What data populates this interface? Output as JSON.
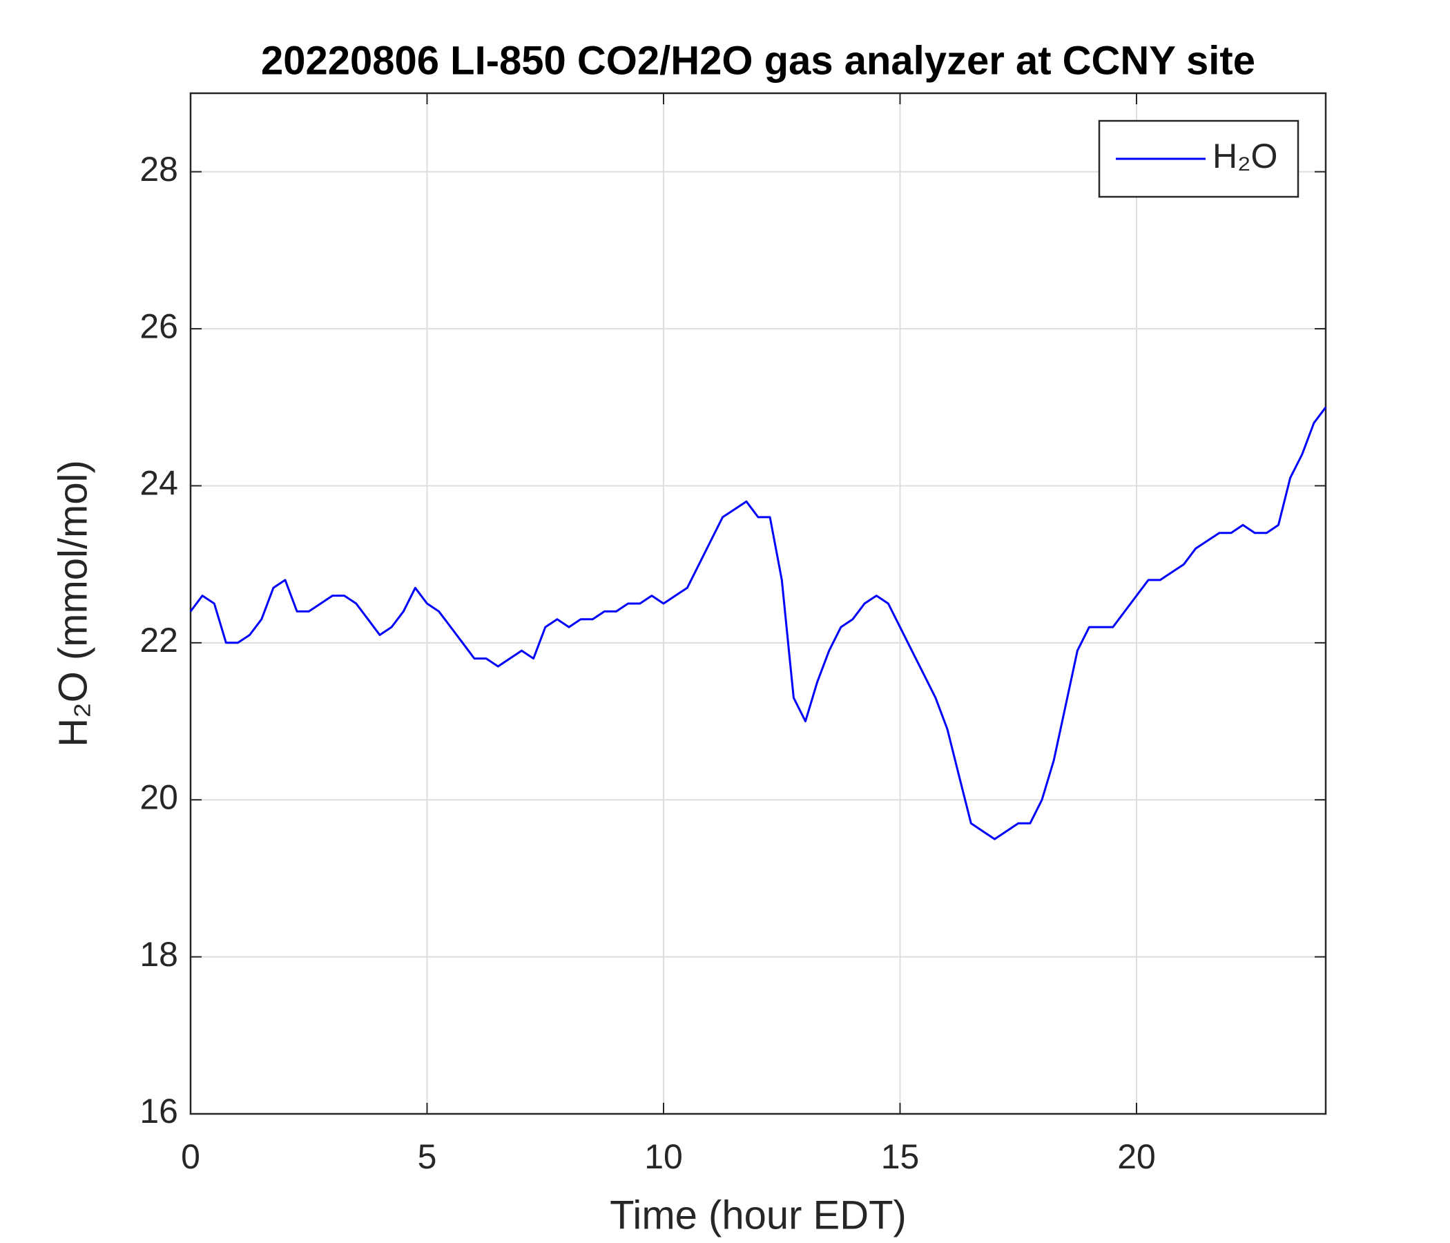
{
  "chart_data": {
    "type": "line",
    "title": "20220806 LI-850 CO2/H2O gas analyzer at CCNY site",
    "xlabel": "Time (hour EDT)",
    "ylabel": "H₂O (mmol/mol)",
    "x": [
      0,
      0.25,
      0.5,
      0.75,
      1,
      1.25,
      1.5,
      1.75,
      2,
      2.25,
      2.5,
      2.75,
      3,
      3.25,
      3.5,
      3.75,
      4,
      4.25,
      4.5,
      4.75,
      5,
      5.25,
      5.5,
      5.75,
      6,
      6.25,
      6.5,
      6.75,
      7,
      7.25,
      7.5,
      7.75,
      8,
      8.25,
      8.5,
      8.75,
      9,
      9.25,
      9.5,
      9.75,
      10,
      10.25,
      10.5,
      10.75,
      11,
      11.25,
      11.5,
      11.75,
      12,
      12.25,
      12.5,
      12.75,
      13,
      13.25,
      13.5,
      13.75,
      14,
      14.25,
      14.5,
      14.75,
      15,
      15.25,
      15.5,
      15.75,
      16,
      16.25,
      16.5,
      16.75,
      17,
      17.25,
      17.5,
      17.75,
      18,
      18.25,
      18.5,
      18.75,
      19,
      19.25,
      19.5,
      19.75,
      20,
      20.25,
      20.5,
      20.75,
      21,
      21.25,
      21.5,
      21.75,
      22,
      22.25,
      22.5,
      22.75,
      23,
      23.25,
      23.5,
      23.75,
      24
    ],
    "series": [
      {
        "name": "H₂O",
        "color": "#0000ff",
        "values": [
          22.4,
          22.6,
          22.5,
          22.0,
          22.0,
          22.1,
          22.3,
          22.7,
          22.8,
          22.4,
          22.4,
          22.5,
          22.6,
          22.6,
          22.5,
          22.3,
          22.1,
          22.2,
          22.4,
          22.7,
          22.5,
          22.4,
          22.2,
          22.0,
          21.8,
          21.8,
          21.7,
          21.8,
          21.9,
          21.8,
          22.2,
          22.3,
          22.2,
          22.3,
          22.3,
          22.4,
          22.4,
          22.5,
          22.5,
          22.6,
          22.5,
          22.6,
          22.7,
          23.0,
          23.3,
          23.6,
          23.7,
          23.8,
          23.6,
          23.6,
          22.8,
          21.3,
          21.0,
          21.5,
          21.9,
          22.2,
          22.3,
          22.5,
          22.6,
          22.5,
          22.2,
          21.9,
          21.6,
          21.3,
          20.9,
          20.3,
          19.7,
          19.6,
          19.5,
          19.6,
          19.7,
          19.7,
          20.0,
          20.5,
          21.2,
          21.9,
          22.2,
          22.2,
          22.2,
          22.4,
          22.6,
          22.8,
          22.8,
          22.9,
          23.0,
          23.2,
          23.3,
          23.4,
          23.4,
          23.5,
          23.4,
          23.4,
          23.5,
          24.1,
          24.4,
          24.8,
          25.0
        ]
      }
    ],
    "xlim": [
      0,
      24
    ],
    "xticks": [
      0,
      5,
      10,
      15,
      20
    ],
    "ylim": [
      16,
      29
    ],
    "yticks": [
      16,
      18,
      20,
      22,
      24,
      26,
      28
    ],
    "grid": true,
    "legend": "upper right"
  }
}
